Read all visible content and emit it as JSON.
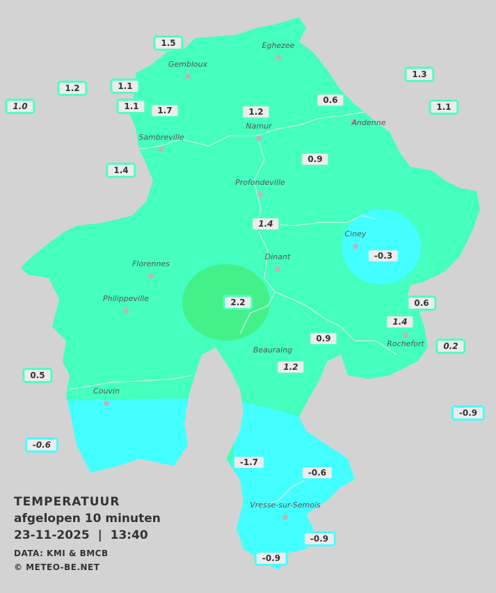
{
  "legend": {
    "title": "TEMPERATUUR",
    "subtitle": "afgelopen 10 minuten",
    "datetime": "23-11-2025  |  13:40",
    "source": "DATA: KMI & BMCB",
    "copyright": "© METEO-BE.NET"
  },
  "colors": {
    "background": "#d3d3d3",
    "zone_mild": "#44ffbe",
    "zone_warm": "#44f08a",
    "zone_cold": "#44ffff"
  },
  "cities": [
    "Eghezee",
    "Gembloux",
    "Andenne",
    "Namur",
    "Sambreville",
    "Profondeville",
    "Ciney",
    "Dinant",
    "Florennes",
    "Philippeville",
    "Rochefort",
    "Beauraing",
    "Couvin",
    "Vresse-sur-Semois"
  ],
  "stations": [
    {
      "value": "1.5",
      "italic": false
    },
    {
      "value": "1.2",
      "italic": false
    },
    {
      "value": "1.1",
      "italic": false
    },
    {
      "value": "1.0",
      "italic": true
    },
    {
      "value": "1.1",
      "italic": false
    },
    {
      "value": "1.7",
      "italic": false
    },
    {
      "value": "1.2",
      "italic": false
    },
    {
      "value": "0.6",
      "italic": false
    },
    {
      "value": "1.3",
      "italic": false
    },
    {
      "value": "1.1",
      "italic": false
    },
    {
      "value": "1.4",
      "italic": false
    },
    {
      "value": "0.9",
      "italic": false
    },
    {
      "value": "1.4",
      "italic": true
    },
    {
      "value": "-0.3",
      "italic": false
    },
    {
      "value": "2.2",
      "italic": false
    },
    {
      "value": "0.6",
      "italic": false
    },
    {
      "value": "1.4",
      "italic": true
    },
    {
      "value": "0.2",
      "italic": true
    },
    {
      "value": "0.9",
      "italic": false
    },
    {
      "value": "1.2",
      "italic": true
    },
    {
      "value": "0.5",
      "italic": false
    },
    {
      "value": "-0.9",
      "italic": false
    },
    {
      "value": "-0.6",
      "italic": true
    },
    {
      "value": "-1.7",
      "italic": false
    },
    {
      "value": "-0.6",
      "italic": false
    },
    {
      "value": "-0.9",
      "italic": false
    },
    {
      "value": "-0.9",
      "italic": false
    }
  ]
}
